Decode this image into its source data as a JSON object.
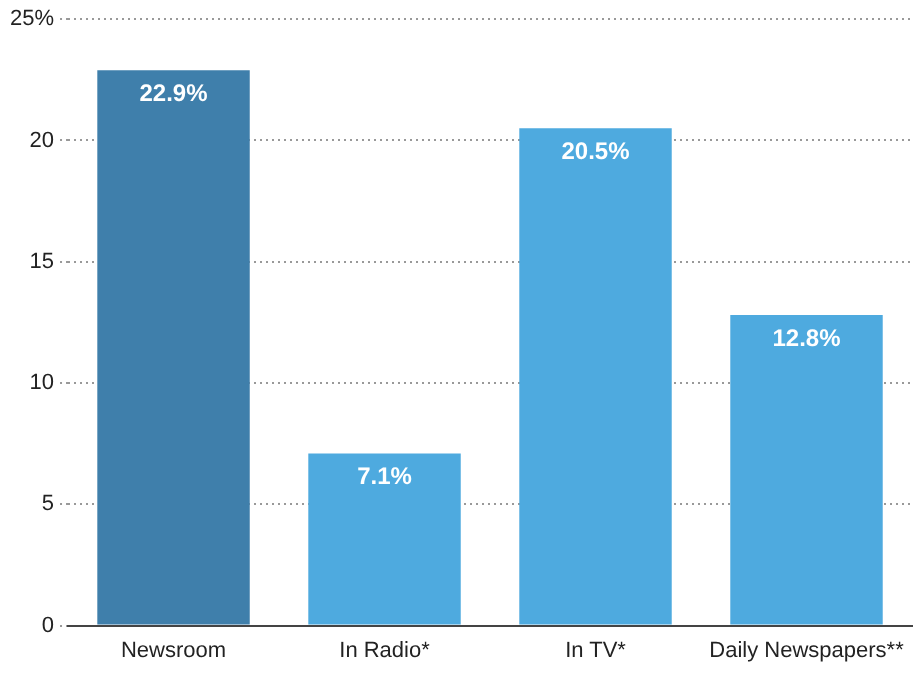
{
  "chart_data": {
    "type": "bar",
    "categories": [
      "Newsroom",
      "In Radio*",
      "In TV*",
      "Daily Newspapers**"
    ],
    "values": [
      22.9,
      7.1,
      20.5,
      12.8
    ],
    "value_labels": [
      "22.9%",
      "7.1%",
      "20.5%",
      "12.8%"
    ],
    "colors": [
      "#3f7fab",
      "#4eaadf",
      "#4eaadf",
      "#4eaadf"
    ],
    "ylim": [
      0,
      25
    ],
    "yticks": [
      0,
      5,
      10,
      15,
      20,
      {
        "value": 25,
        "label": "25%"
      }
    ],
    "grid": "y"
  }
}
